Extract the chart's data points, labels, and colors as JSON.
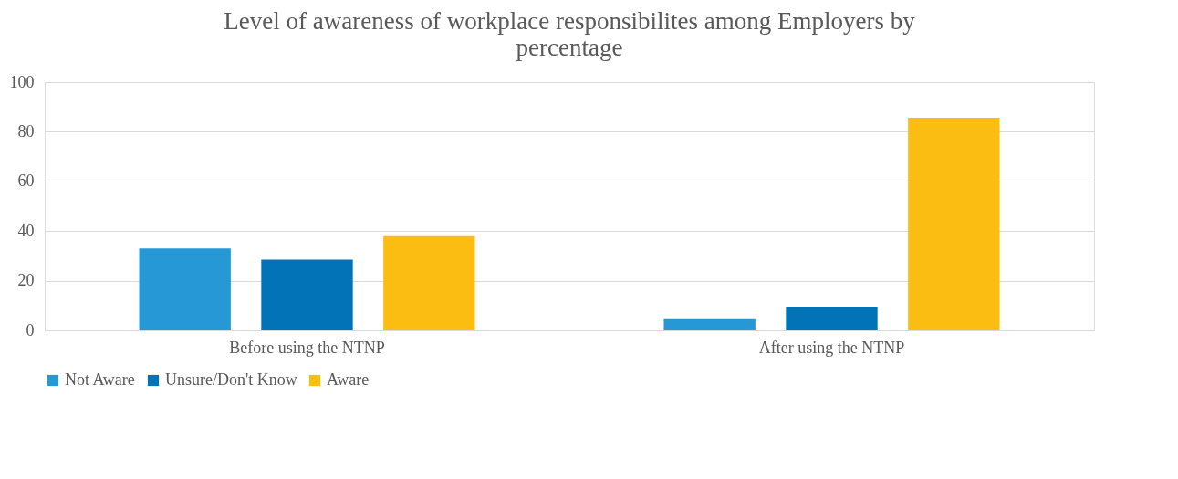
{
  "chart_data": {
    "type": "bar",
    "title": "Level of awareness of workplace responsibilites among Employers by percentage",
    "categories": [
      "Before using the NTNP",
      "After using the NTNP"
    ],
    "series": [
      {
        "name": "Not Aware",
        "color": "#2698d6",
        "values": [
          33,
          4.5
        ]
      },
      {
        "name": "Unsure/Don't Know",
        "color": "#0173b6",
        "values": [
          28.5,
          9.5
        ]
      },
      {
        "name": "Aware",
        "color": "#fcbd12",
        "values": [
          38,
          85.7
        ]
      }
    ],
    "ylim": [
      0,
      100
    ],
    "yticks": [
      0,
      20,
      40,
      60,
      80,
      100
    ],
    "grid": "y",
    "legend": "bottom"
  }
}
